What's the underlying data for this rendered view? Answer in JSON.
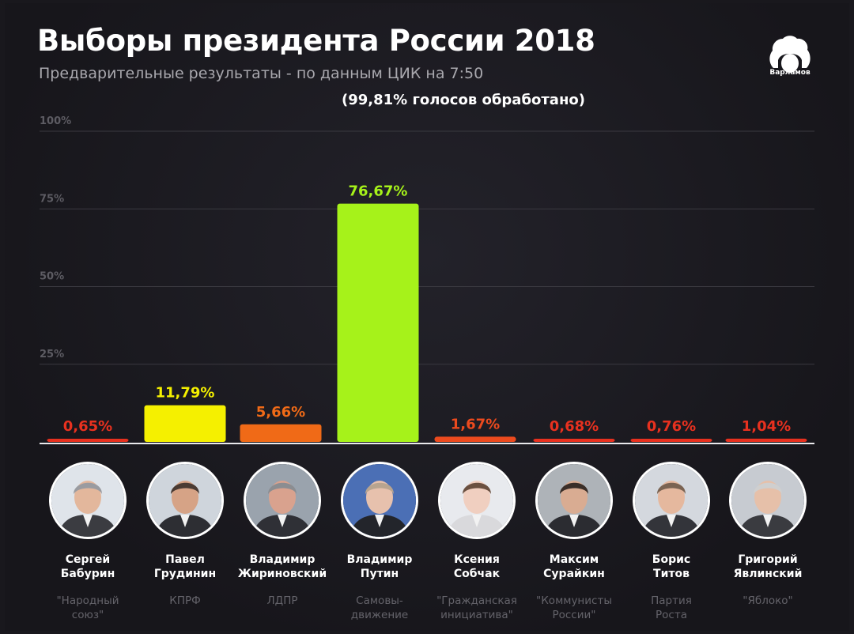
{
  "header": {
    "title": "Выборы президента России 2018",
    "subtitle": "Предварительные результаты - по данным ЦИК на 7:50",
    "processed": "(99,81%  голосов обработано)"
  },
  "logo": {
    "text": "Варламов"
  },
  "chart_data": {
    "type": "bar",
    "title": "Выборы президента России 2018",
    "subtitle": "Предварительные результаты - по данным ЦИК на 7:50",
    "ylim": [
      0,
      100
    ],
    "yticks": [
      "25%",
      "50%",
      "75%",
      "100%"
    ],
    "grid": true,
    "categories": [
      "Сергей Бабурин",
      "Павел Грудинин",
      "Владимир Жириновский",
      "Владимир Путин",
      "Ксения Собчак",
      "Максим Сурайкин",
      "Борис Титов",
      "Григорий Явлинский"
    ],
    "values": [
      0.65,
      11.79,
      5.66,
      76.67,
      1.67,
      0.68,
      0.76,
      1.04
    ],
    "value_labels": [
      "0,65%",
      "11,79%",
      "5,66%",
      "76,67%",
      "1,67%",
      "0,68%",
      "0,76%",
      "1,04%"
    ],
    "bar_colors": [
      "#e8311f",
      "#f5f000",
      "#f06a17",
      "#a6f21a",
      "#ec4a1e",
      "#e8311f",
      "#e8311f",
      "#e8311f"
    ],
    "label_colors": [
      "#e8311f",
      "#f5f000",
      "#f06a17",
      "#a6f21a",
      "#ec4a1e",
      "#e8311f",
      "#e8311f",
      "#e8311f"
    ]
  },
  "candidates": [
    {
      "first": "Сергей",
      "last": "Бабурин",
      "party1": "\"Народный",
      "party2": "союз\""
    },
    {
      "first": "Павел",
      "last": "Грудинин",
      "party1": "КПРФ",
      "party2": ""
    },
    {
      "first": "Владимир",
      "last": "Жириновский",
      "party1": "ЛДПР",
      "party2": ""
    },
    {
      "first": "Владимир",
      "last": "Путин",
      "party1": "Самовы-",
      "party2": "движение"
    },
    {
      "first": "Ксения",
      "last": "Собчак",
      "party1": "\"Гражданская",
      "party2": "инициатива\""
    },
    {
      "first": "Максим",
      "last": "Сурайкин",
      "party1": "\"Коммунисты",
      "party2": "России\""
    },
    {
      "first": "Борис",
      "last": "Титов",
      "party1": "Партия",
      "party2": "Роста"
    },
    {
      "first": "Григорий",
      "last": "Явлинский",
      "party1": "\"Яблоко\"",
      "party2": ""
    }
  ],
  "colors": {
    "background": "#19181d",
    "grid": "#3a3940",
    "text_muted": "#a9a8ae"
  }
}
